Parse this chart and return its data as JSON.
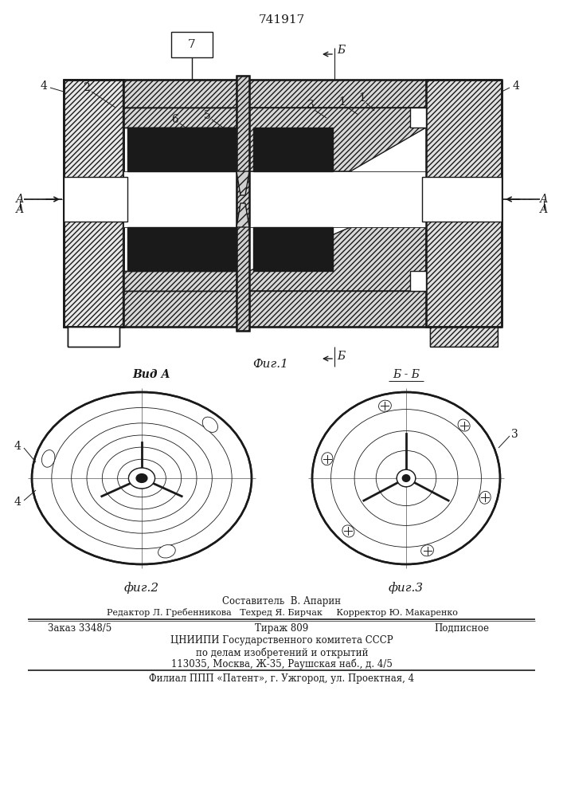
{
  "patent_number": "741917",
  "fig1_caption": "Фиг.1",
  "fig2_caption": "фиг.2",
  "fig3_caption": "фиг.3",
  "view_A": "Вид А",
  "section_BB": "Б - Б",
  "footer_line1": "Составитель  В. Апарин",
  "footer_line2": "Редактор Л. Гребенникова   Техред Я. Бирчак     Корректор Ю. Макаренко",
  "footer_line3a": "Заказ 3348/5",
  "footer_line3b": "Тираж 809",
  "footer_line3c": "Подписное",
  "footer_line4": "ЦНИИПИ Государственного комитета СССР",
  "footer_line5": "по делам изобретений и открытий",
  "footer_line6": "113035, Москва, Ж-35, Раушская наб., д. 4/5",
  "footer_line7": "Филиал ППП «Патент», г. Ужгород, ул. Проектная, 4",
  "bg_color": "#ffffff",
  "line_color": "#1a1a1a"
}
